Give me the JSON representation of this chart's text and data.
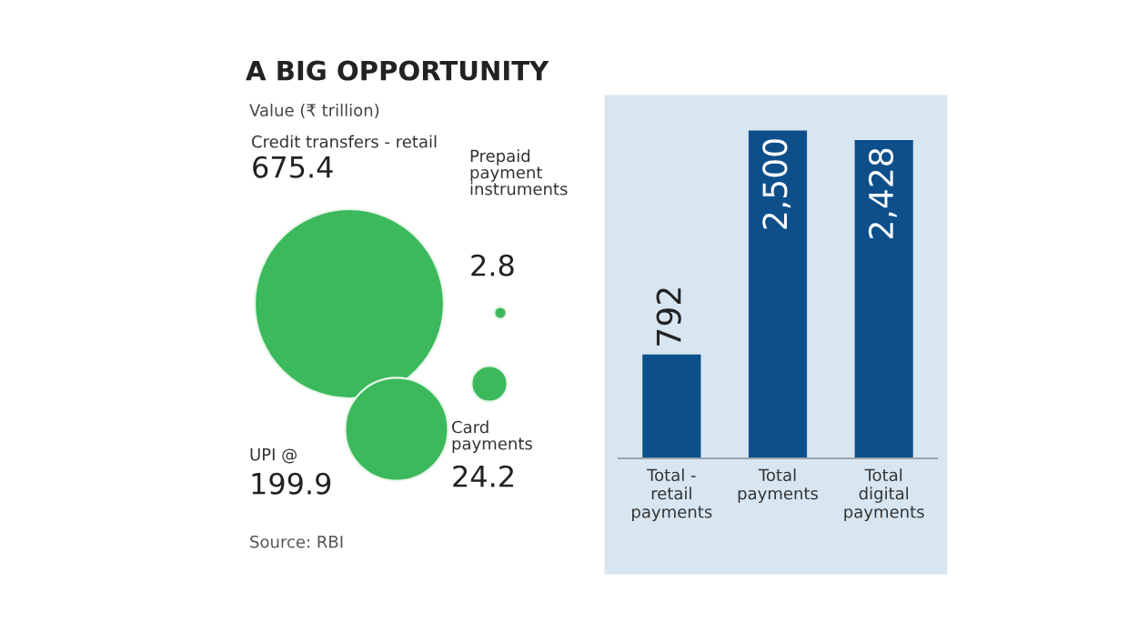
{
  "chart_data": [
    {
      "type": "other",
      "title": "A BIG OPPORTUNITY",
      "subtitle": "Value (₹ trillion)",
      "categories": [
        "Credit transfers - retail",
        "UPI @",
        "Prepaid\npayment\ninstruments",
        "Card\npayments"
      ],
      "values": [
        675.4,
        199.9,
        2.8,
        24.2
      ],
      "color": "#3cb95c",
      "data_labels": true,
      "annotations": [
        "Source: RBI"
      ]
    },
    {
      "type": "bar",
      "categories": [
        "Total -\nretail\npayments",
        "Total\npayments",
        "Total\ndigital\npayments"
      ],
      "values": [
        792,
        2500,
        2428
      ],
      "value_labels": [
        "792",
        "2,500",
        "2,428"
      ],
      "color": "#0d4f8b"
    }
  ]
}
